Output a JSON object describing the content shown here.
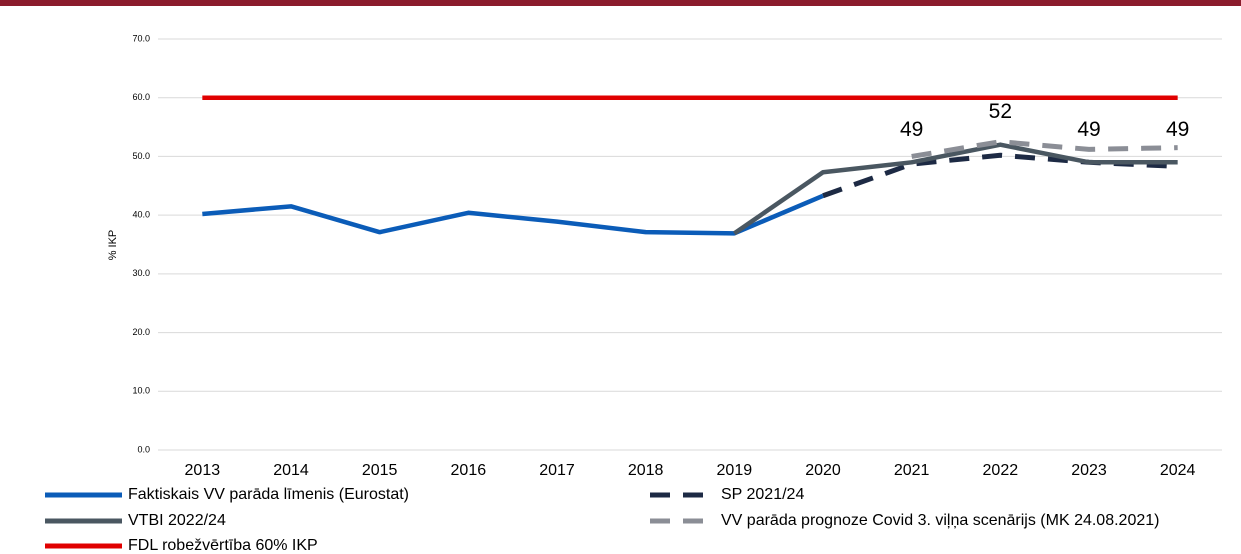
{
  "chart_data": {
    "type": "line",
    "y_label": "% IKP",
    "categories": [
      "2013",
      "2014",
      "2015",
      "2016",
      "2017",
      "2018",
      "2019",
      "2020",
      "2021",
      "2022",
      "2023",
      "2024"
    ],
    "series": [
      {
        "name": "Faktiskais VV parāda līmenis (Eurostat)",
        "color": "#0b5cb8",
        "dashed": false,
        "values": [
          40.2,
          41.5,
          37.1,
          40.4,
          38.9,
          37.1,
          36.9,
          43.3,
          null,
          null,
          null,
          null
        ]
      },
      {
        "name": "SP 2021/24",
        "color": "#1d2a44",
        "dashed": true,
        "values": [
          null,
          null,
          null,
          null,
          null,
          null,
          null,
          43.3,
          48.7,
          50.2,
          49.0,
          48.3
        ]
      },
      {
        "name": "VTBI 2022/24",
        "color": "#4a5761",
        "dashed": false,
        "values": [
          null,
          null,
          null,
          null,
          null,
          null,
          36.9,
          47.3,
          49,
          52,
          49,
          49
        ],
        "value_labels": [
          null,
          null,
          null,
          null,
          null,
          null,
          null,
          null,
          "49",
          "52",
          "49",
          "49"
        ]
      },
      {
        "name": "VV parāda prognoze Covid 3. viļņa scenārijs (MK 24.08.2021)",
        "color": "#8b8e96",
        "dashed": true,
        "values": [
          null,
          null,
          null,
          null,
          null,
          null,
          null,
          null,
          50.0,
          52.5,
          51.2,
          51.5
        ]
      },
      {
        "name": "FDL robežvērtība 60% IKP",
        "color": "#e00000",
        "dashed": false,
        "values": [
          60,
          60,
          60,
          60,
          60,
          60,
          60,
          60,
          60,
          60,
          60,
          60
        ]
      }
    ],
    "ylim": [
      0,
      70
    ],
    "yticks": [
      {
        "value": 0,
        "label": "0.0"
      },
      {
        "value": 10,
        "label": "10.0"
      },
      {
        "value": 20,
        "label": "20.0"
      },
      {
        "value": 30,
        "label": "30.0"
      },
      {
        "value": 40,
        "label": "40.0"
      },
      {
        "value": 50,
        "label": "50.0"
      },
      {
        "value": 60,
        "label": "60.0"
      },
      {
        "value": 70,
        "label": "70.0"
      }
    ],
    "grid": true
  }
}
